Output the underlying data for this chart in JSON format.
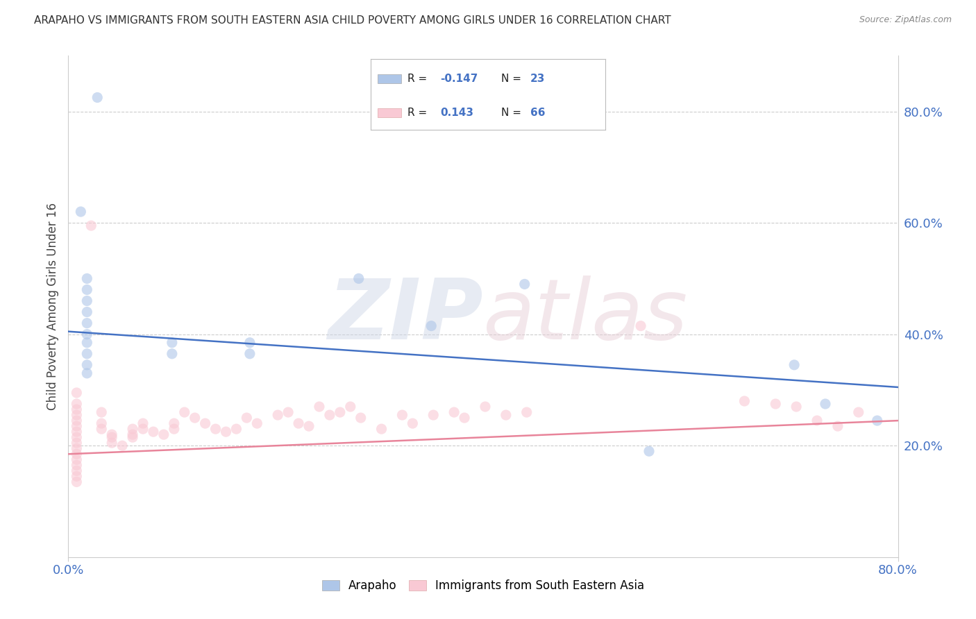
{
  "title": "ARAPAHO VS IMMIGRANTS FROM SOUTH EASTERN ASIA CHILD POVERTY AMONG GIRLS UNDER 16 CORRELATION CHART",
  "source": "Source: ZipAtlas.com",
  "ylabel": "Child Poverty Among Girls Under 16",
  "legend_items": [
    {
      "label": "Arapaho",
      "color": "#aec6e8",
      "R": "-0.147",
      "N": "23"
    },
    {
      "label": "Immigrants from South Eastern Asia",
      "color": "#f9c9d4",
      "R": "0.143",
      "N": "66"
    }
  ],
  "blue_scatter": [
    [
      0.028,
      0.825
    ],
    [
      0.012,
      0.62
    ],
    [
      0.018,
      0.5
    ],
    [
      0.018,
      0.48
    ],
    [
      0.018,
      0.46
    ],
    [
      0.018,
      0.44
    ],
    [
      0.018,
      0.42
    ],
    [
      0.018,
      0.4
    ],
    [
      0.018,
      0.385
    ],
    [
      0.018,
      0.365
    ],
    [
      0.018,
      0.345
    ],
    [
      0.018,
      0.33
    ],
    [
      0.1,
      0.385
    ],
    [
      0.1,
      0.365
    ],
    [
      0.175,
      0.385
    ],
    [
      0.175,
      0.365
    ],
    [
      0.28,
      0.5
    ],
    [
      0.35,
      0.415
    ],
    [
      0.44,
      0.49
    ],
    [
      0.56,
      0.19
    ],
    [
      0.7,
      0.345
    ],
    [
      0.73,
      0.275
    ],
    [
      0.78,
      0.245
    ]
  ],
  "pink_scatter": [
    [
      0.008,
      0.295
    ],
    [
      0.008,
      0.275
    ],
    [
      0.008,
      0.265
    ],
    [
      0.008,
      0.255
    ],
    [
      0.008,
      0.245
    ],
    [
      0.008,
      0.235
    ],
    [
      0.008,
      0.225
    ],
    [
      0.008,
      0.215
    ],
    [
      0.008,
      0.205
    ],
    [
      0.008,
      0.195
    ],
    [
      0.008,
      0.185
    ],
    [
      0.008,
      0.175
    ],
    [
      0.008,
      0.165
    ],
    [
      0.008,
      0.155
    ],
    [
      0.008,
      0.145
    ],
    [
      0.008,
      0.135
    ],
    [
      0.022,
      0.595
    ],
    [
      0.032,
      0.26
    ],
    [
      0.032,
      0.24
    ],
    [
      0.032,
      0.23
    ],
    [
      0.042,
      0.22
    ],
    [
      0.042,
      0.215
    ],
    [
      0.042,
      0.205
    ],
    [
      0.052,
      0.2
    ],
    [
      0.062,
      0.23
    ],
    [
      0.062,
      0.22
    ],
    [
      0.062,
      0.215
    ],
    [
      0.072,
      0.24
    ],
    [
      0.072,
      0.23
    ],
    [
      0.082,
      0.225
    ],
    [
      0.092,
      0.22
    ],
    [
      0.102,
      0.24
    ],
    [
      0.102,
      0.23
    ],
    [
      0.112,
      0.26
    ],
    [
      0.122,
      0.25
    ],
    [
      0.132,
      0.24
    ],
    [
      0.142,
      0.23
    ],
    [
      0.152,
      0.225
    ],
    [
      0.162,
      0.23
    ],
    [
      0.172,
      0.25
    ],
    [
      0.182,
      0.24
    ],
    [
      0.202,
      0.255
    ],
    [
      0.212,
      0.26
    ],
    [
      0.222,
      0.24
    ],
    [
      0.232,
      0.235
    ],
    [
      0.242,
      0.27
    ],
    [
      0.252,
      0.255
    ],
    [
      0.262,
      0.26
    ],
    [
      0.272,
      0.27
    ],
    [
      0.282,
      0.25
    ],
    [
      0.302,
      0.23
    ],
    [
      0.322,
      0.255
    ],
    [
      0.332,
      0.24
    ],
    [
      0.352,
      0.255
    ],
    [
      0.372,
      0.26
    ],
    [
      0.382,
      0.25
    ],
    [
      0.402,
      0.27
    ],
    [
      0.422,
      0.255
    ],
    [
      0.442,
      0.26
    ],
    [
      0.552,
      0.415
    ],
    [
      0.652,
      0.28
    ],
    [
      0.682,
      0.275
    ],
    [
      0.702,
      0.27
    ],
    [
      0.722,
      0.245
    ],
    [
      0.742,
      0.235
    ],
    [
      0.762,
      0.26
    ]
  ],
  "blue_line": [
    [
      0.0,
      0.405
    ],
    [
      0.8,
      0.305
    ]
  ],
  "pink_line": [
    [
      0.0,
      0.185
    ],
    [
      0.8,
      0.245
    ]
  ],
  "watermark_zip": "ZIP",
  "watermark_atlas": "atlas",
  "background_color": "#ffffff",
  "scatter_alpha": 0.6,
  "scatter_size_blue": 120,
  "scatter_size_pink": 120,
  "grid_color": "#cccccc",
  "line_blue": "#4472c4",
  "line_pink": "#e8849a",
  "dot_blue": "#aec6e8",
  "dot_pink": "#f9c9d4",
  "xlim": [
    0.0,
    0.8
  ],
  "ylim": [
    0.0,
    0.9
  ],
  "yticks": [
    0.2,
    0.4,
    0.6,
    0.8
  ],
  "ytick_labels": [
    "20.0%",
    "40.0%",
    "60.0%",
    "80.0%"
  ],
  "xticks": [
    0.0,
    0.8
  ],
  "xtick_labels": [
    "0.0%",
    "80.0%"
  ]
}
